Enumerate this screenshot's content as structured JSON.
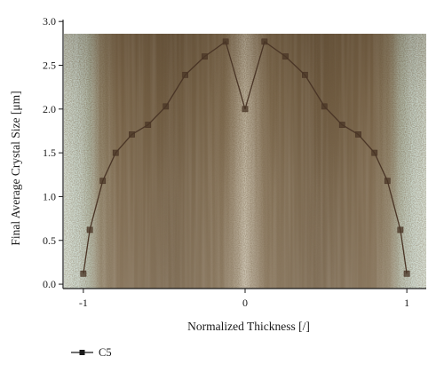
{
  "chart_data": {
    "type": "line",
    "xlabel": "Normalized Thickness [/]",
    "ylabel": "Final Average Crystal Size [μm]",
    "xlim": [
      -1.12,
      1.12
    ],
    "ylim": [
      -0.05,
      2.86
    ],
    "x_ticks": [
      -1,
      0,
      1
    ],
    "x_tick_labels": [
      "-1",
      "0",
      "1"
    ],
    "y_ticks": [
      0.0,
      0.5,
      1.0,
      1.5,
      2.0,
      2.5,
      3.0
    ],
    "y_tick_labels": [
      "0.0",
      "0.5",
      "1.0",
      "1.5",
      "2.0",
      "2.5",
      "3.0"
    ],
    "grid": false,
    "legend_position": "bottom-left",
    "background": "micrograph of a cross-section (brown crystal structure with a light vertical centre band and pale-green translucent edges)",
    "series": [
      {
        "name": "C5",
        "color": "#4a3526",
        "marker": "square",
        "x": [
          -1.0,
          -0.96,
          -0.88,
          -0.8,
          -0.7,
          -0.6,
          -0.49,
          -0.37,
          -0.25,
          -0.12,
          0.0,
          0.12,
          0.25,
          0.37,
          0.49,
          0.6,
          0.7,
          0.8,
          0.88,
          0.96,
          1.0
        ],
        "y": [
          0.12,
          0.62,
          1.18,
          1.5,
          1.71,
          1.82,
          2.03,
          2.39,
          2.6,
          2.77,
          2.0,
          2.77,
          2.6,
          2.39,
          2.03,
          1.82,
          1.71,
          1.5,
          1.18,
          0.62,
          0.12
        ]
      }
    ]
  }
}
